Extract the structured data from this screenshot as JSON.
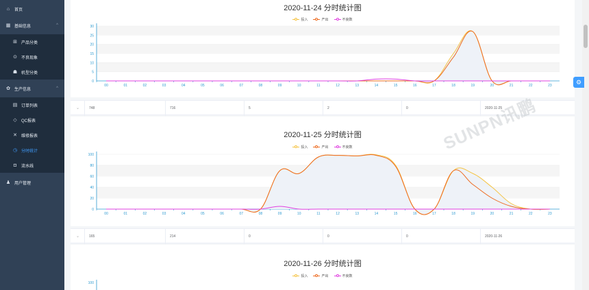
{
  "sidebar": {
    "items": [
      {
        "label": "首页",
        "icon": "home-icon"
      },
      {
        "label": "基础信息",
        "icon": "grid-icon",
        "arrow": "^"
      },
      {
        "label": "产品分类",
        "icon": "boxes-icon"
      },
      {
        "label": "不良现象",
        "icon": "circle-dot-icon"
      },
      {
        "label": "机型分类",
        "icon": "cubes-icon"
      },
      {
        "label": "生产信息",
        "icon": "gear-icon",
        "arrow": "^"
      },
      {
        "label": "订单列表",
        "icon": "list-icon"
      },
      {
        "label": "QC报表",
        "icon": "shield-icon"
      },
      {
        "label": "维修报表",
        "icon": "tools-icon"
      },
      {
        "label": "分时统计",
        "icon": "clock-icon"
      },
      {
        "label": "流水线",
        "icon": "line-icon"
      },
      {
        "label": "用户管理",
        "icon": "users-icon"
      }
    ]
  },
  "legend": {
    "input": "投入",
    "output": "产出",
    "defect": "不良数"
  },
  "colors": {
    "input": "#f5c342",
    "output": "#ee6a1f",
    "defect": "#e040e0",
    "accent": "#409eff",
    "area": "#eef2f8"
  },
  "hours": [
    "00",
    "01",
    "02",
    "03",
    "04",
    "05",
    "06",
    "07",
    "08",
    "09",
    "10",
    "11",
    "12",
    "13",
    "14",
    "15",
    "16",
    "17",
    "18",
    "19",
    "20",
    "21",
    "22",
    "23"
  ],
  "charts": [
    {
      "title": "2020-11-24 分时统计图",
      "yticks": [
        "0",
        "5",
        "10",
        "15",
        "20",
        "25",
        "30"
      ],
      "ymax": 30,
      "input": [
        0,
        0,
        0,
        0,
        0,
        0,
        0,
        0,
        0,
        0,
        0,
        0,
        0,
        0,
        0,
        0,
        0,
        0,
        15,
        27,
        0,
        0,
        0,
        0
      ],
      "output": [
        0,
        0,
        0,
        0,
        0,
        0,
        0,
        0,
        0,
        0,
        0,
        0,
        0,
        0,
        0,
        0,
        0,
        0,
        13,
        27,
        0,
        0,
        0,
        0
      ],
      "defect": [
        0,
        0,
        0,
        0,
        0,
        0,
        0,
        0,
        0,
        0,
        0,
        0,
        0,
        0,
        1,
        1,
        0,
        0,
        0,
        0,
        0,
        0,
        0,
        0
      ]
    },
    {
      "title": "2020-11-25 分时统计图",
      "yticks": [
        "0",
        "20",
        "40",
        "60",
        "80",
        "100"
      ],
      "ymax": 100,
      "input": [
        0,
        0,
        0,
        0,
        0,
        0,
        0,
        0,
        0,
        70,
        65,
        95,
        98,
        97,
        99,
        80,
        0,
        0,
        70,
        65,
        40,
        10,
        0,
        0
      ],
      "output": [
        0,
        0,
        0,
        0,
        0,
        0,
        0,
        0,
        0,
        70,
        65,
        95,
        98,
        97,
        98,
        78,
        0,
        0,
        70,
        45,
        20,
        5,
        0,
        0
      ],
      "defect": [
        0,
        0,
        0,
        0,
        0,
        0,
        0,
        0,
        0,
        5,
        0,
        0,
        0,
        0,
        0,
        0,
        0,
        0,
        0,
        0,
        0,
        0,
        0,
        0
      ]
    },
    {
      "title": "2020-11-26 分时统计图",
      "yticks": [
        "100"
      ],
      "ymax": 100
    }
  ],
  "rows": [
    [
      "748",
      "716",
      "5",
      "2",
      "0",
      "2020-11-25"
    ],
    [
      "165",
      "214",
      "0",
      "0",
      "0",
      "2020-11-26"
    ]
  ],
  "watermark": "SUNPN讯鹏",
  "chart_data": [
    {
      "type": "line",
      "title": "2020-11-24 分时统计图",
      "x": [
        "00",
        "01",
        "02",
        "03",
        "04",
        "05",
        "06",
        "07",
        "08",
        "09",
        "10",
        "11",
        "12",
        "13",
        "14",
        "15",
        "16",
        "17",
        "18",
        "19",
        "20",
        "21",
        "22",
        "23"
      ],
      "ylim": [
        0,
        30
      ],
      "legend": "top-center",
      "series": [
        {
          "name": "投入",
          "values": [
            0,
            0,
            0,
            0,
            0,
            0,
            0,
            0,
            0,
            0,
            0,
            0,
            0,
            0,
            0,
            0,
            0,
            0,
            15,
            27,
            0,
            0,
            0,
            0
          ]
        },
        {
          "name": "产出",
          "values": [
            0,
            0,
            0,
            0,
            0,
            0,
            0,
            0,
            0,
            0,
            0,
            0,
            0,
            0,
            0,
            0,
            0,
            0,
            13,
            27,
            0,
            0,
            0,
            0
          ]
        },
        {
          "name": "不良数",
          "values": [
            0,
            0,
            0,
            0,
            0,
            0,
            0,
            0,
            0,
            0,
            0,
            0,
            0,
            0,
            1,
            1,
            0,
            0,
            0,
            0,
            0,
            0,
            0,
            0
          ]
        }
      ]
    },
    {
      "type": "line",
      "title": "2020-11-25 分时统计图",
      "x": [
        "00",
        "01",
        "02",
        "03",
        "04",
        "05",
        "06",
        "07",
        "08",
        "09",
        "10",
        "11",
        "12",
        "13",
        "14",
        "15",
        "16",
        "17",
        "18",
        "19",
        "20",
        "21",
        "22",
        "23"
      ],
      "ylim": [
        0,
        100
      ],
      "legend": "top-center",
      "series": [
        {
          "name": "投入",
          "values": [
            0,
            0,
            0,
            0,
            0,
            0,
            0,
            0,
            0,
            70,
            65,
            95,
            98,
            97,
            99,
            80,
            0,
            0,
            70,
            65,
            40,
            10,
            0,
            0
          ]
        },
        {
          "name": "产出",
          "values": [
            0,
            0,
            0,
            0,
            0,
            0,
            0,
            0,
            0,
            70,
            65,
            95,
            98,
            97,
            98,
            78,
            0,
            0,
            70,
            45,
            20,
            5,
            0,
            0
          ]
        },
        {
          "name": "不良数",
          "values": [
            0,
            0,
            0,
            0,
            0,
            0,
            0,
            0,
            0,
            5,
            0,
            0,
            0,
            0,
            0,
            0,
            0,
            0,
            0,
            0,
            0,
            0,
            0,
            0
          ]
        }
      ]
    }
  ]
}
